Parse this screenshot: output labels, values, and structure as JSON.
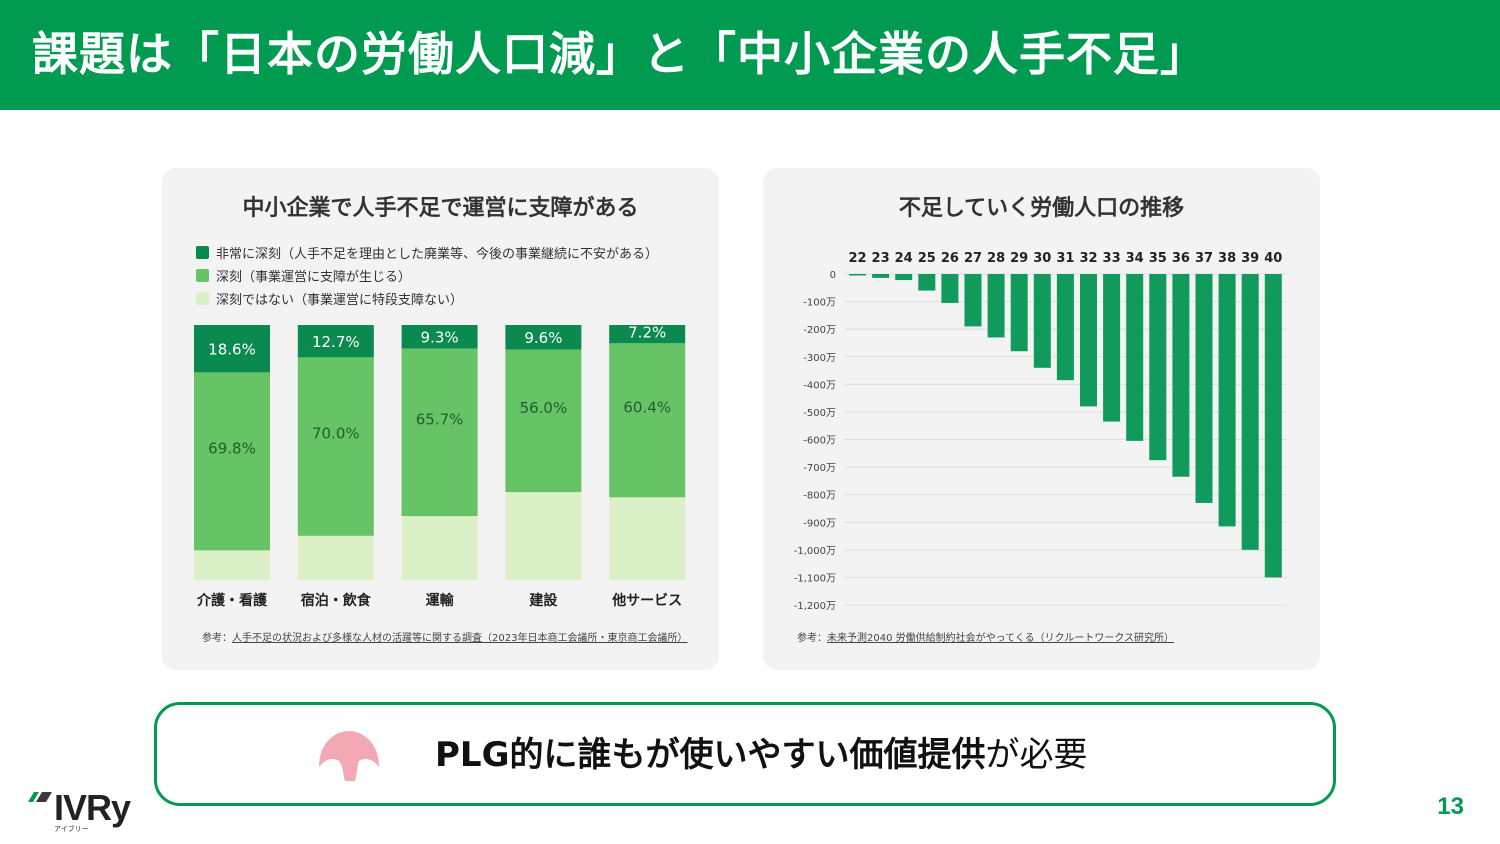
{
  "header": {
    "title": "課題は「日本の労働人口減」と「中小企業の人手不足」"
  },
  "colors": {
    "brand": "#009a50",
    "dark_green": "#0a8a4e",
    "mid_green": "#67c466",
    "light_green": "#dcf0c8",
    "bar_green": "#109a5c"
  },
  "left_panel": {
    "title": "中小企業で人手不足で運営に支障がある",
    "legend": [
      {
        "label": "非常に深刻（人手不足を理由とした廃業等、今後の事業継続に不安がある）",
        "color": "#0a8a4e"
      },
      {
        "label": "深刻（事業運営に支障が生じる）",
        "color": "#67c466"
      },
      {
        "label": "深刻ではない（事業運営に特段支障ない）",
        "color": "#dcf0c8"
      }
    ],
    "source_prefix": "参考：",
    "source_link": "人手不足の状況および多様な人材の活躍等に関する調査（2023年日本商工会議所・東京商工会議所）"
  },
  "right_panel": {
    "title": "不足していく労働人口の推移",
    "source_prefix": "参考：",
    "source_link": "未来予測2040 労働供給制約社会がやってくる（リクルートワークス研究所）"
  },
  "chart_data": [
    {
      "type": "bar",
      "stacked": true,
      "title": "中小企業で人手不足で運営に支障がある",
      "categories": [
        "介護・看護",
        "宿泊・飲食",
        "運輸",
        "建設",
        "他サービス"
      ],
      "series": [
        {
          "name": "非常に深刻（人手不足を理由とした廃業等、今後の事業継続に不安がある）",
          "values": [
            18.6,
            12.7,
            9.3,
            9.6,
            7.2
          ],
          "labels": [
            "18.6%",
            "12.7%",
            "9.3%",
            "9.6%",
            "7.2%"
          ],
          "color": "#0a8a4e"
        },
        {
          "name": "深刻（事業運営に支障が生じる）",
          "values": [
            69.8,
            70.0,
            65.7,
            56.0,
            60.4
          ],
          "labels": [
            "69.8%",
            "70.0%",
            "65.7%",
            "56.0%",
            "60.4%"
          ],
          "color": "#67c466"
        },
        {
          "name": "深刻ではない（事業運営に特段支障ない）",
          "values": [
            11.6,
            17.3,
            25.0,
            34.4,
            32.4
          ],
          "color": "#dcf0c8"
        }
      ],
      "legend_position": "top-left"
    },
    {
      "type": "bar",
      "title": "不足していく労働人口の推移",
      "categories": [
        "22",
        "23",
        "24",
        "25",
        "26",
        "27",
        "28",
        "29",
        "30",
        "31",
        "32",
        "33",
        "34",
        "35",
        "36",
        "37",
        "38",
        "39",
        "40"
      ],
      "values": [
        -2,
        -14,
        -22,
        -60,
        -105,
        -190,
        -230,
        -280,
        -340,
        -385,
        -480,
        -535,
        -605,
        -675,
        -735,
        -830,
        -915,
        -1000,
        -1100
      ],
      "ylim": [
        -1200,
        0
      ],
      "yticks": [
        0,
        -100,
        -200,
        -300,
        -400,
        -500,
        -600,
        -700,
        -800,
        -900,
        -1000,
        -1100,
        -1200
      ],
      "ytick_labels": [
        "0",
        "-100万",
        "-200万",
        "-300万",
        "-400万",
        "-500万",
        "-600万",
        "-700万",
        "-800万",
        "-900万",
        "-1,000万",
        "-1,100万",
        "-1,200万"
      ],
      "grid": true,
      "color": "#109a5c"
    }
  ],
  "callout": {
    "strong_text": "PLG的に誰もが使いやすい価値提供",
    "normal_text": "が必要",
    "icon": "pink-mushroom-icon"
  },
  "logo": {
    "word": "IVRy",
    "sub": "アイブリー"
  },
  "page_number": "13"
}
